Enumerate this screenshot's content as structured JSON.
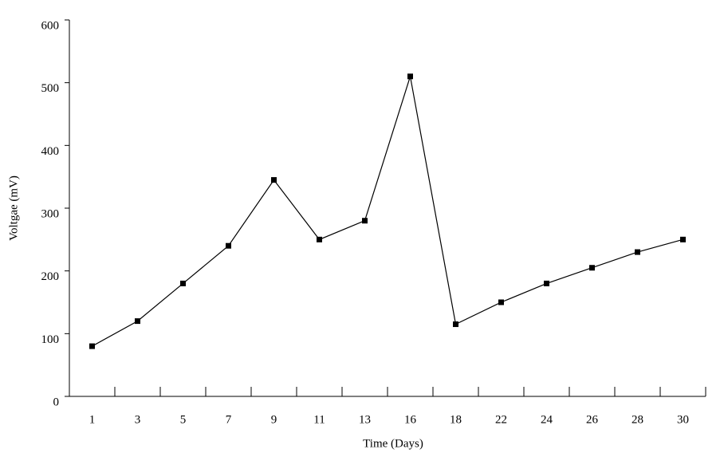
{
  "chart_data": {
    "type": "line",
    "x_label": "Time (Days)",
    "y_label": "Voltgae (mV)",
    "categories": [
      "1",
      "3",
      "5",
      "7",
      "9",
      "11",
      "13",
      "16",
      "18",
      "22",
      "24",
      "26",
      "28",
      "30"
    ],
    "values": [
      80,
      120,
      180,
      240,
      345,
      250,
      280,
      510,
      115,
      150,
      180,
      205,
      230,
      250
    ],
    "color": "#000000",
    "ylim": [
      0,
      600
    ],
    "yticks": [
      0,
      100,
      200,
      300,
      400,
      500,
      600
    ],
    "grid": false
  }
}
